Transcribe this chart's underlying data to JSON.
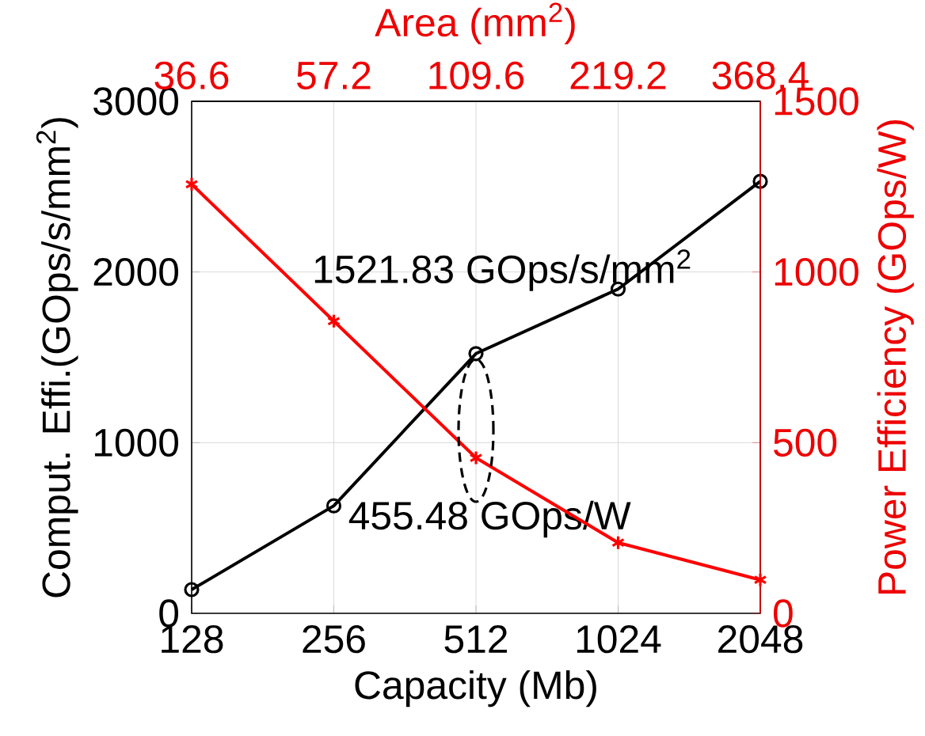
{
  "chart_data": {
    "type": "line",
    "categories": [
      "128",
      "256",
      "512",
      "1024",
      "2048"
    ],
    "xlabel": "Capacity (Mb)",
    "ylabel": "Comput. Effi.(GOps/s/mm$^{2}$)",
    "y2label": "Power Efficiency (GOps/W)",
    "x2label": "Area (mm$^{2}$)",
    "ylim": [
      0,
      3000
    ],
    "yticks": [
      0,
      1000,
      2000,
      3000
    ],
    "y2lim": [
      0,
      1500
    ],
    "y2ticks": [
      0,
      500,
      1000,
      1500
    ],
    "grid": true,
    "series": [
      {
        "color": "#000000",
        "marker": "circle",
        "values": [
          139,
          630,
          1521.83,
          1900,
          2531
        ]
      },
      {
        "color": "#ff0000",
        "marker": "cross",
        "axis": "y2",
        "values": [
          1257,
          856,
          455.48,
          207,
          98
        ]
      }
    ],
    "annotations": [
      "1521.83 GOps/s/mm$^{2}$",
      "455.48 GOps/W",
      "36.6",
      "57.2",
      "109.6",
      "219.2",
      "368.4"
    ]
  }
}
